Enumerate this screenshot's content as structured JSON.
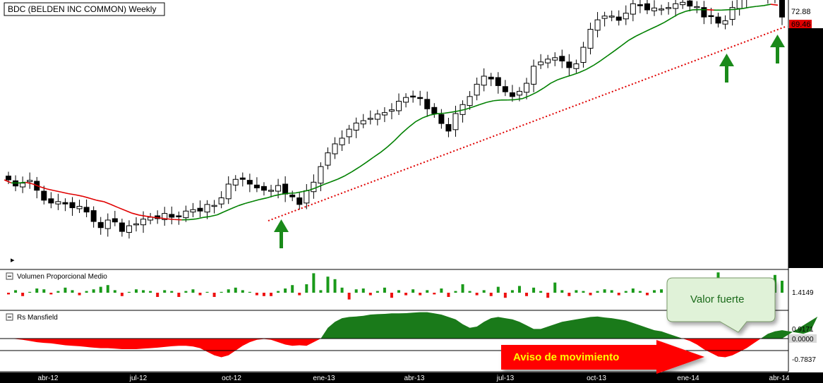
{
  "title": "BDC (BELDEN INC COMMON) Weekly",
  "price_panel": {
    "last_price_label": "72.88",
    "ma_price_label": "69.46",
    "expand_glyph": "▸"
  },
  "volume_panel": {
    "title": "Volumen Proporcional Medio",
    "value_label": "1.4149"
  },
  "rs_panel": {
    "title": "Rs Mansfield",
    "upper_label": "0.9171",
    "zero_label": "0.0000",
    "lower_label": "-0.7837"
  },
  "x_axis": {
    "ticks": [
      "abr-12",
      "jul-12",
      "oct-12",
      "ene-13",
      "abr-13",
      "jul-13",
      "oct-13",
      "ene-14",
      "abr-14"
    ]
  },
  "annotations": {
    "callout": "Valor fuerte",
    "banner": "Aviso de movimiento"
  },
  "colors": {
    "up_candle": "#ffffff",
    "down_candle": "#000000",
    "ma_up": "#008000",
    "ma_down": "#e00000",
    "trendline": "#e00000",
    "arrow": "#1a8a1a",
    "volume_up": "#1a9a1a",
    "volume_down": "#ee1111",
    "rs_positive": "#1a7a1a",
    "rs_negative": "#ff0000",
    "callout_fill": "#e0f2d8",
    "banner": "#ff0000"
  },
  "chart_data": [
    {
      "type": "candlestick",
      "title": "BDC (BELDEN INC COMMON) Weekly",
      "x_ticks": [
        "abr-12",
        "jul-12",
        "oct-12",
        "ene-13",
        "abr-13",
        "jul-13",
        "oct-13",
        "ene-14",
        "abr-14"
      ],
      "close": [
        38.5,
        37.2,
        37.8,
        38.4,
        36.3,
        34.2,
        33.6,
        33.9,
        33.4,
        32.6,
        32.9,
        31.7,
        29.7,
        28.4,
        30.0,
        29.6,
        27.6,
        28.8,
        29.2,
        30.2,
        30.6,
        30.3,
        31.4,
        30.6,
        30.7,
        31.9,
        32.2,
        31.9,
        33.3,
        33.1,
        34.7,
        37.6,
        38.6,
        38.6,
        37.6,
        36.8,
        36.3,
        36.3,
        37.3,
        35.5,
        34.9,
        33.3,
        36.2,
        38.0,
        41.3,
        44.2,
        46.1,
        47.3,
        49.2,
        50.5,
        51.0,
        51.5,
        52.4,
        52.7,
        53.3,
        55.1,
        55.9,
        56.1,
        55.7,
        53.5,
        52.5,
        50.4,
        48.8,
        52.5,
        54.4,
        56.1,
        58.7,
        60.4,
        59.8,
        58.4,
        57.1,
        56.1,
        57.2,
        58.9,
        62.5,
        63.4,
        64.0,
        64.3,
        63.6,
        62.2,
        63.0,
        66.5,
        70.3,
        72.3,
        73.1,
        73.1,
        72.2,
        73.7,
        75.7,
        75.4,
        74.4,
        74.8,
        74.6,
        74.9,
        75.7,
        76.0,
        75.2,
        75.1,
        72.9,
        73.1,
        71.6,
        72.1,
        74.9,
        76.8,
        78.0,
        78.6,
        77.7,
        77.0,
        79.1,
        72.88
      ],
      "moving_average_close_label": 69.46,
      "moving_average_colors": {
        "rising": "#008000",
        "falling": "#e00000"
      }
    },
    {
      "type": "bar",
      "title": "Volumen Proporcional Medio",
      "last_value": 1.4149,
      "values": [
        -0.2,
        0.3,
        -0.4,
        0.1,
        0.5,
        0.4,
        -0.2,
        0.2,
        0.6,
        0.3,
        -0.3,
        0.2,
        0.4,
        0.7,
        0.9,
        0.3,
        -0.4,
        0.1,
        0.4,
        0.3,
        0.2,
        -0.5,
        0.3,
        0.2,
        -0.5,
        0.2,
        0.4,
        -0.3,
        0.1,
        -0.5,
        0.1,
        0.4,
        0.6,
        0.3,
        0.1,
        -0.3,
        -0.4,
        -0.4,
        0.2,
        0.5,
        0.9,
        -0.3,
        1.0,
        2.3,
        0.3,
        1.9,
        1.6,
        0.6,
        -0.8,
        0.4,
        0.5,
        -0.3,
        0.2,
        0.6,
        -0.6,
        0.3,
        -0.3,
        0.4,
        -0.3,
        0.3,
        -0.2,
        0.5,
        -0.5,
        0.2,
        1.0,
        0.2,
        -0.3,
        0.3,
        -0.4,
        0.7,
        -0.6,
        0.3,
        0.8,
        -0.4,
        0.6,
        0.2,
        -0.6,
        1.2,
        0.3,
        -0.4,
        0.3,
        0.2,
        -0.3,
        0.2,
        0.4,
        0.3,
        -0.3,
        0.2,
        0.5,
        0.2,
        -0.3,
        0.3,
        0.4,
        -0.2,
        0.5,
        -0.3,
        0.3,
        -0.5,
        0.2,
        0.9,
        2.4,
        -0.3,
        0.2,
        0.8,
        -0.3,
        0.5,
        0.3,
        0.3,
        2.1,
        1.4149
      ]
    },
    {
      "type": "area",
      "title": "Rs Mansfield",
      "y_labels": [
        0.9171,
        0.0,
        -0.7837
      ],
      "values": [
        0.0,
        -0.02,
        -0.05,
        -0.1,
        -0.15,
        -0.18,
        -0.2,
        -0.24,
        -0.28,
        -0.3,
        -0.32,
        -0.35,
        -0.38,
        -0.4,
        -0.4,
        -0.42,
        -0.44,
        -0.44,
        -0.44,
        -0.42,
        -0.4,
        -0.38,
        -0.35,
        -0.32,
        -0.3,
        -0.3,
        -0.33,
        -0.4,
        -0.55,
        -0.7,
        -0.78,
        -0.7,
        -0.5,
        -0.3,
        -0.15,
        -0.05,
        -0.02,
        -0.05,
        -0.15,
        -0.25,
        -0.3,
        -0.28,
        -0.3,
        -0.15,
        0.0,
        0.45,
        0.7,
        0.85,
        0.9,
        0.92,
        0.95,
        1.0,
        1.02,
        1.03,
        1.05,
        1.05,
        1.06,
        1.08,
        1.1,
        1.1,
        1.05,
        1.0,
        0.9,
        0.8,
        0.6,
        0.45,
        0.5,
        0.7,
        0.85,
        0.9,
        0.85,
        0.8,
        0.7,
        0.55,
        0.4,
        0.4,
        0.5,
        0.6,
        0.7,
        0.75,
        0.8,
        0.85,
        0.9,
        0.92,
        0.88,
        0.85,
        0.8,
        0.75,
        0.65,
        0.55,
        0.45,
        0.35,
        0.3,
        0.2,
        0.1,
        0.0,
        -0.1,
        -0.25,
        -0.45,
        -0.6,
        -0.75,
        -0.78,
        -0.7,
        -0.55,
        -0.4,
        -0.2,
        0.0,
        0.2,
        0.3,
        0.35,
        0.3,
        0.25,
        0.2,
        0.3,
        0.9171
      ]
    }
  ]
}
